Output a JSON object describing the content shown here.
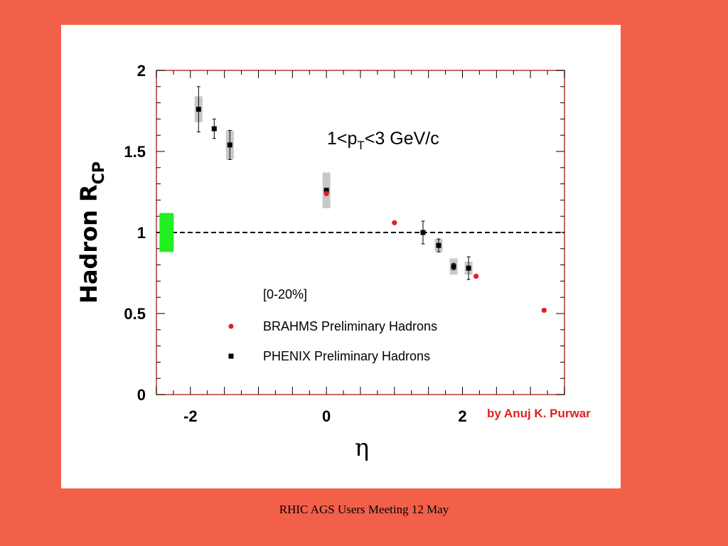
{
  "footer": "RHIC AGS Users Meeting 12 May",
  "colors": {
    "background": "#f2604a",
    "brahms": "#e0201c",
    "phenix": "#000000",
    "syserr": "#c8c8c8",
    "band": "#22ee22",
    "frame": "#b03a2e"
  },
  "chart_data": {
    "type": "scatter",
    "ylabel": "Hadron R",
    "ylabel_sub": "CP",
    "xlabel": "η",
    "xlim": [
      -2.5,
      3.5
    ],
    "ylim": [
      0,
      2
    ],
    "xticks": [
      -2,
      0,
      2
    ],
    "xtick_labels": [
      "-2",
      "0",
      "2"
    ],
    "yticks": [
      0,
      0.5,
      1,
      1.5,
      2
    ],
    "ytick_labels": [
      "0",
      "0.5",
      "1",
      "1.5",
      "2"
    ],
    "annotation": {
      "prefix": "1<p",
      "sub": "T",
      "suffix": "<3 GeV/c"
    },
    "centrality": "[0-20%]",
    "credit": "by Anuj K. Purwar",
    "reference_line": 1,
    "normalization_band": {
      "x": -2.35,
      "ylow": 0.88,
      "yhigh": 1.12
    },
    "series": [
      {
        "name": "BRAHMS Preliminary Hadrons",
        "marker": "circle",
        "points": [
          {
            "x": 0.0,
            "y": 1.24
          },
          {
            "x": 1.0,
            "y": 1.06
          },
          {
            "x": 2.2,
            "y": 0.73
          },
          {
            "x": 3.2,
            "y": 0.52
          }
        ]
      },
      {
        "name": "PHENIX Preliminary Hadrons",
        "marker": "square",
        "points": [
          {
            "x": -1.88,
            "y": 1.76,
            "stat": 0.14,
            "sys": 0.08
          },
          {
            "x": -1.65,
            "y": 1.64,
            "stat": 0.06,
            "sys": 0.0
          },
          {
            "x": -1.42,
            "y": 1.54,
            "stat": 0.09,
            "sys": 0.09
          },
          {
            "x": 0.0,
            "y": 1.26,
            "stat": 0.0,
            "sys": 0.11
          },
          {
            "x": 1.42,
            "y": 1.0,
            "stat": 0.07,
            "sys": 0.0
          },
          {
            "x": 1.65,
            "y": 0.92,
            "stat": 0.04,
            "sys": 0.04
          },
          {
            "x": 1.87,
            "y": 0.79,
            "stat": 0.02,
            "sys": 0.05
          },
          {
            "x": 2.09,
            "y": 0.78,
            "stat": 0.07,
            "sys": 0.04
          }
        ]
      }
    ]
  }
}
